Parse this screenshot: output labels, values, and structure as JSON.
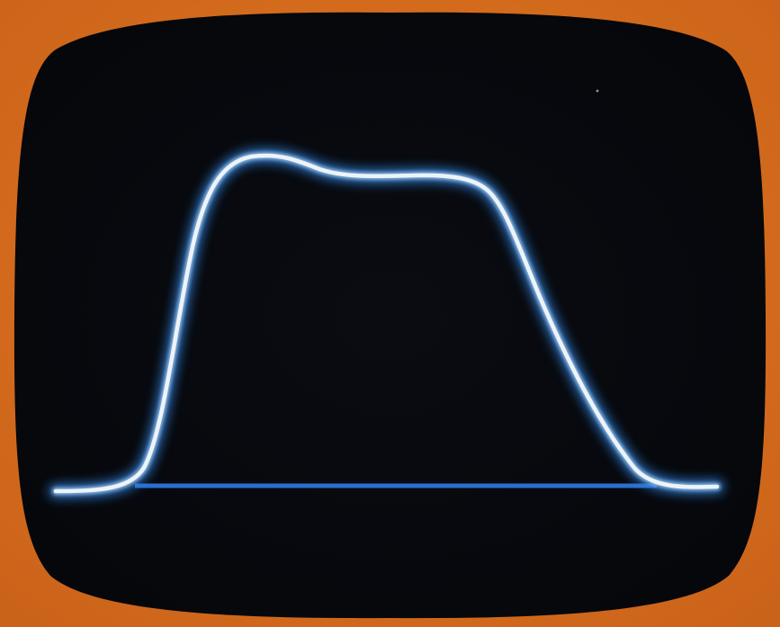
{
  "scene": {
    "subject": "oscilloscope-screen-trace",
    "colors": {
      "bezel": "#e3771f",
      "bezel_shadow": "#c9621a",
      "screen": "#0a0c12",
      "trace_core": "#eef3f8",
      "trace_glow": "#2f7fd8",
      "baseline": "#1f5fb8"
    }
  }
}
